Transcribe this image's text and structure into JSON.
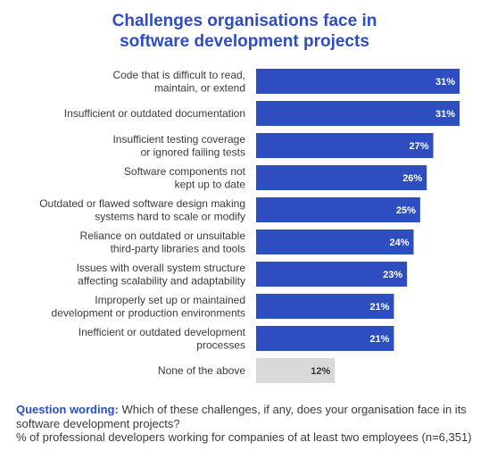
{
  "title_lines": [
    "Challenges organisations face in",
    "software development projects"
  ],
  "colors": {
    "primary": "#2d4dc1",
    "muted": "#d9d9d9",
    "text": "#3a3a3a",
    "label_on_primary": "#ffffff",
    "label_on_muted": "#333333"
  },
  "chart_data": {
    "type": "bar",
    "orientation": "horizontal",
    "title": "Challenges organisations face in software development projects",
    "categories": [
      [
        "Code that is difficult to read,",
        "maintain, or extend"
      ],
      [
        "Insufficient or outdated documentation"
      ],
      [
        "Insufficient testing coverage",
        "or ignored failing tests"
      ],
      [
        "Software components not",
        "kept up to date"
      ],
      [
        "Outdated or flawed software design making",
        "systems hard to scale or modify"
      ],
      [
        "Reliance on outdated or unsuitable",
        "third-party libraries and tools"
      ],
      [
        "Issues with overall system structure",
        "affecting scalability and adaptability"
      ],
      [
        "Improperly set up or maintained",
        "development or production environments"
      ],
      [
        "Inefficient or outdated development",
        "processes"
      ],
      [
        "None of the above"
      ]
    ],
    "values": [
      31,
      31,
      27,
      26,
      25,
      24,
      23,
      21,
      21,
      12
    ],
    "value_labels": [
      "31%",
      "31%",
      "27%",
      "26%",
      "25%",
      "24%",
      "23%",
      "21%",
      "21%",
      "12%"
    ],
    "highlight": [
      true,
      true,
      true,
      true,
      true,
      true,
      true,
      true,
      true,
      false
    ],
    "xlim": [
      0,
      31
    ],
    "grid": false,
    "legend": "none"
  },
  "footer": {
    "question_label": "Question wording:",
    "question_text": " Which of these challenges, if any, does your organisation face in its software development projects?",
    "base_text": "% of professional developers working for companies of at least two employees (n=6,351)"
  }
}
